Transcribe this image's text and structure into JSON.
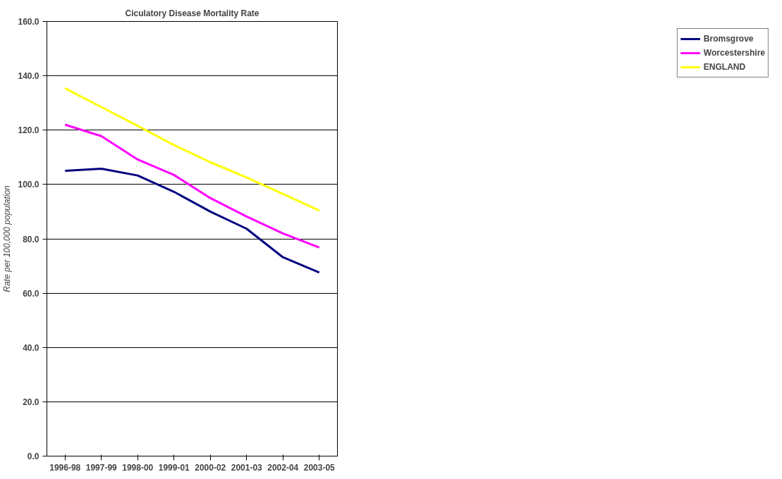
{
  "chart_data": {
    "type": "line",
    "title": "Ciculatory Disease Mortality Rate",
    "ylabel": "Rate per 100,000 population",
    "categories": [
      "1996-98",
      "1997-99",
      "1998-00",
      "1999-01",
      "2000-02",
      "2001-03",
      "2002-04",
      "2003-05"
    ],
    "series": [
      {
        "name": "Bromsgrove",
        "color": "#000080",
        "values": [
          105.0,
          105.8,
          103.3,
          97.3,
          90.0,
          83.7,
          73.2,
          67.6
        ]
      },
      {
        "name": "Worcestershire",
        "color": "#ff00ff",
        "values": [
          122.0,
          117.8,
          109.2,
          103.5,
          95.0,
          88.2,
          82.0,
          76.8
        ]
      },
      {
        "name": "ENGLAND",
        "color": "#ffff00",
        "values": [
          135.4,
          128.5,
          121.6,
          114.5,
          108.2,
          102.6,
          96.5,
          90.4
        ]
      }
    ],
    "ylim": [
      0,
      160
    ],
    "yticks": [
      {
        "value": 0,
        "label": "0.0"
      },
      {
        "value": 20,
        "label": "20.0"
      },
      {
        "value": 40,
        "label": "40.0"
      },
      {
        "value": 60,
        "label": "60.0"
      },
      {
        "value": 80,
        "label": "80.0"
      },
      {
        "value": 100,
        "label": "100.0"
      },
      {
        "value": 120,
        "label": "120.0"
      },
      {
        "value": 140,
        "label": "140.0"
      },
      {
        "value": 160,
        "label": "160.0"
      }
    ],
    "grid": "y",
    "legend": "right",
    "marker": "none",
    "line_style": "solid"
  }
}
